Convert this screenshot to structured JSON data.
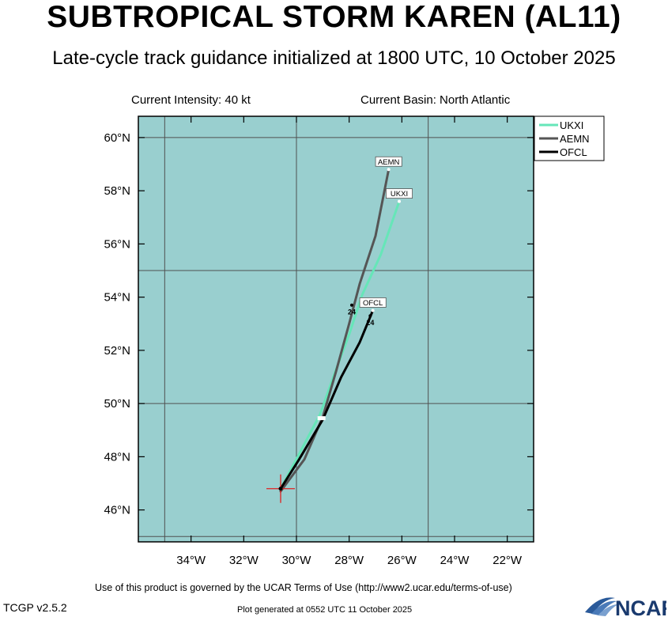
{
  "header": {
    "title": "SUBTROPICAL STORM KAREN (AL11)",
    "subtitle": "Late-cycle track guidance initialized at 1800 UTC, 10 October 2025",
    "intensity": "Current Intensity: 40 kt",
    "basin": "Current Basin: North Atlantic"
  },
  "footer": {
    "terms": "Use of this product is governed by the UCAR Terms of Use (http://www2.ucar.edu/terms-of-use)",
    "version": "TCGP v2.5.2",
    "generated": "Plot generated at 0552 UTC   11 October 2025",
    "logo_text": "NCAR"
  },
  "colors": {
    "ocean": "#99cfcf",
    "grid": "#505050",
    "UKXI": "#66e6b8",
    "AEMN": "#555555",
    "OFCL": "#000000",
    "current_marker": "#e02020"
  },
  "chart_data": {
    "type": "line",
    "xlabel": "",
    "ylabel": "",
    "lon_ticks": [
      -34,
      -32,
      -30,
      -28,
      -26,
      -24,
      -22
    ],
    "lat_ticks": [
      46,
      48,
      50,
      52,
      54,
      56,
      58,
      60
    ],
    "lon_tick_labels": [
      "34°W",
      "32°W",
      "30°W",
      "28°W",
      "26°W",
      "24°W",
      "22°W"
    ],
    "lat_tick_labels": [
      "46°N",
      "48°N",
      "50°N",
      "52°N",
      "54°N",
      "56°N",
      "58°N",
      "60°N"
    ],
    "xlim": [
      -36.0,
      -21.0
    ],
    "ylim": [
      44.8,
      60.8
    ],
    "grid_lon": [
      -35,
      -30,
      -25
    ],
    "grid_lat": [
      45,
      50,
      55,
      60
    ],
    "legend_position": "top-right",
    "current_position": {
      "lon": -30.6,
      "lat": 46.8
    },
    "series": [
      {
        "name": "UKXI",
        "points": [
          [
            -30.6,
            46.8
          ],
          [
            -29.9,
            48.1
          ],
          [
            -29.1,
            49.6
          ],
          [
            -28.6,
            51.0
          ],
          [
            -28.0,
            52.6
          ],
          [
            -27.5,
            54.1
          ],
          [
            -26.8,
            55.6
          ],
          [
            -26.1,
            57.6
          ]
        ],
        "label": "UKXI",
        "tau_labels": []
      },
      {
        "name": "AEMN",
        "points": [
          [
            -30.6,
            46.7
          ],
          [
            -29.7,
            47.9
          ],
          [
            -29.0,
            49.5
          ],
          [
            -28.5,
            51.2
          ],
          [
            -28.0,
            53.0
          ],
          [
            -27.6,
            54.5
          ],
          [
            -27.0,
            56.3
          ],
          [
            -26.5,
            58.8
          ]
        ],
        "label": "AEMN",
        "tau_labels": [
          {
            "text": "24",
            "lon": -27.9,
            "lat": 53.7
          }
        ]
      },
      {
        "name": "OFCL",
        "points": [
          [
            -30.6,
            46.8
          ],
          [
            -29.9,
            47.9
          ],
          [
            -29.0,
            49.4
          ],
          [
            -28.3,
            51.0
          ],
          [
            -27.6,
            52.3
          ],
          [
            -27.1,
            53.5
          ]
        ],
        "label": "OFCL",
        "tau_labels": [
          {
            "text": "24",
            "lon": -27.2,
            "lat": 53.3
          }
        ]
      }
    ]
  }
}
